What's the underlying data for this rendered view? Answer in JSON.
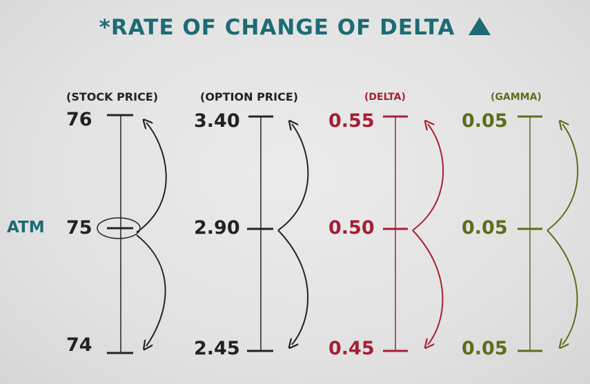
{
  "title": "*RATE OF CHANGE OF DELTA",
  "title_icon": "delta-triangle-icon",
  "atm_label": "ATM",
  "colors": {
    "teal": "#1d6b74",
    "black": "#222222",
    "red": "#a51f33",
    "olive": "#5b6e1c"
  },
  "columns": [
    {
      "header": "(STOCK PRICE)",
      "top": "76",
      "mid": "75",
      "bottom": "74",
      "color": "#222222"
    },
    {
      "header": "(OPTION PRICE)",
      "top": "3.40",
      "mid": "2.90",
      "bottom": "2.45",
      "color": "#222222"
    },
    {
      "header": "(DELTA)",
      "top": "0.55",
      "mid": "0.50",
      "bottom": "0.45",
      "color": "#a51f33"
    },
    {
      "header": "(GAMMA)",
      "top": "0.05",
      "mid": "0.05",
      "bottom": "0.05",
      "color": "#5b6e1c"
    }
  ]
}
